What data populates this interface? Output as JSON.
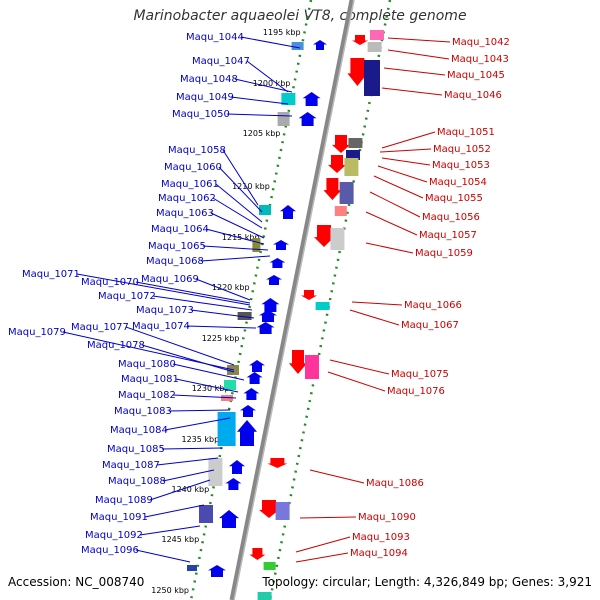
{
  "title": "Marinobacter aquaeolei VT8, complete genome",
  "footer": {
    "accession": "Accession: NC_008740",
    "topology": "Topology: circular; Length: 4,326,849 bp; Genes: 3,921"
  },
  "colors": {
    "left_label": "#0000cc",
    "right_label": "#cc0000",
    "tick": "#228b22",
    "backbone": "#888888"
  },
  "scale_ticks": [
    "1195 kbp",
    "1200 kbp",
    "1205 kbp",
    "1210 kbp",
    "1215 kbp",
    "1220 kbp",
    "1225 kbp",
    "1230 kbp",
    "1235 kbp",
    "1240 kbp",
    "1245 kbp",
    "1250 kbp"
  ],
  "genes_left": [
    "Maqu_1044",
    "Maqu_1047",
    "Maqu_1048",
    "Maqu_1049",
    "Maqu_1050",
    "Maqu_1058",
    "Maqu_1060",
    "Maqu_1061",
    "Maqu_1062",
    "Maqu_1063",
    "Maqu_1064",
    "Maqu_1065",
    "Maqu_1068",
    "Maqu_1071",
    "Maqu_1069",
    "Maqu_1070",
    "Maqu_1072",
    "Maqu_1073",
    "Maqu_1074",
    "Maqu_1077",
    "Maqu_1079",
    "Maqu_1078",
    "Maqu_1080",
    "Maqu_1081",
    "Maqu_1082",
    "Maqu_1083",
    "Maqu_1084",
    "Maqu_1085",
    "Maqu_1087",
    "Maqu_1088",
    "Maqu_1089",
    "Maqu_1091",
    "Maqu_1092",
    "Maqu_1096"
  ],
  "genes_right": [
    "Maqu_1042",
    "Maqu_1043",
    "Maqu_1045",
    "Maqu_1046",
    "Maqu_1051",
    "Maqu_1052",
    "Maqu_1053",
    "Maqu_1054",
    "Maqu_1055",
    "Maqu_1056",
    "Maqu_1057",
    "Maqu_1059",
    "Maqu_1066",
    "Maqu_1067",
    "Maqu_1075",
    "Maqu_1076",
    "Maqu_1086",
    "Maqu_1090",
    "Maqu_1093",
    "Maqu_1094"
  ]
}
